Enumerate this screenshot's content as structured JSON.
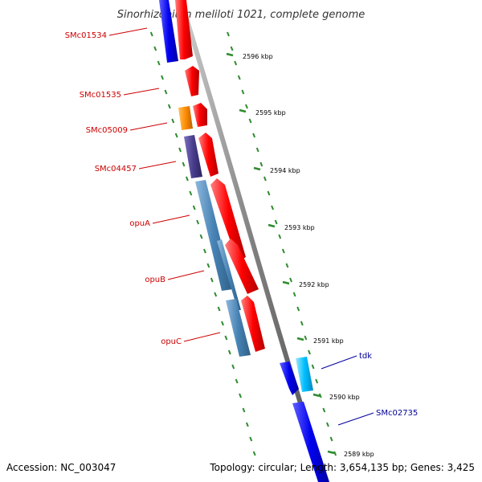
{
  "title": "Sinorhizobium meliloti 1021, complete genome",
  "accession": "Accession: NC_003047",
  "topology": "Topology: circular; Length: 3,654,135 bp; Genes: 3,425",
  "colors": {
    "backbone": "#888888",
    "tick": "#2e8b2e",
    "label_red": "#cc0000",
    "label_blue": "#000099",
    "gene_red": "#ff0000",
    "gene_blue": "#0000ee",
    "gene_steel": "#4682b4",
    "gene_purple": "#483d8b",
    "gene_orange": "#ff8c00",
    "gene_cyan": "#00bfff"
  },
  "ticks": [
    "2596 kbp",
    "2595 kbp",
    "2594 kbp",
    "2593 kbp",
    "2592 kbp",
    "2591 kbp",
    "2590 kbp",
    "2589 kbp"
  ],
  "genes": [
    {
      "name": "SMc01534",
      "color": "gene_blue"
    },
    {
      "name": "",
      "color": "gene_red"
    },
    {
      "name": "SMc01535",
      "color": "gene_red"
    },
    {
      "name": "SMc05009",
      "color": "gene_orange"
    },
    {
      "name": "",
      "color": "gene_red"
    },
    {
      "name": "SMc04457",
      "color": "gene_purple"
    },
    {
      "name": "",
      "color": "gene_red"
    },
    {
      "name": "opuA",
      "color": "gene_steel"
    },
    {
      "name": "",
      "color": "gene_red"
    },
    {
      "name": "opuB",
      "color": "gene_steel"
    },
    {
      "name": "",
      "color": "gene_red"
    },
    {
      "name": "opuC",
      "color": "gene_steel"
    },
    {
      "name": "",
      "color": "gene_red"
    },
    {
      "name": "tdk",
      "color": "gene_cyan"
    },
    {
      "name": "",
      "color": "gene_blue"
    },
    {
      "name": "SMc02735",
      "color": "gene_blue"
    }
  ]
}
